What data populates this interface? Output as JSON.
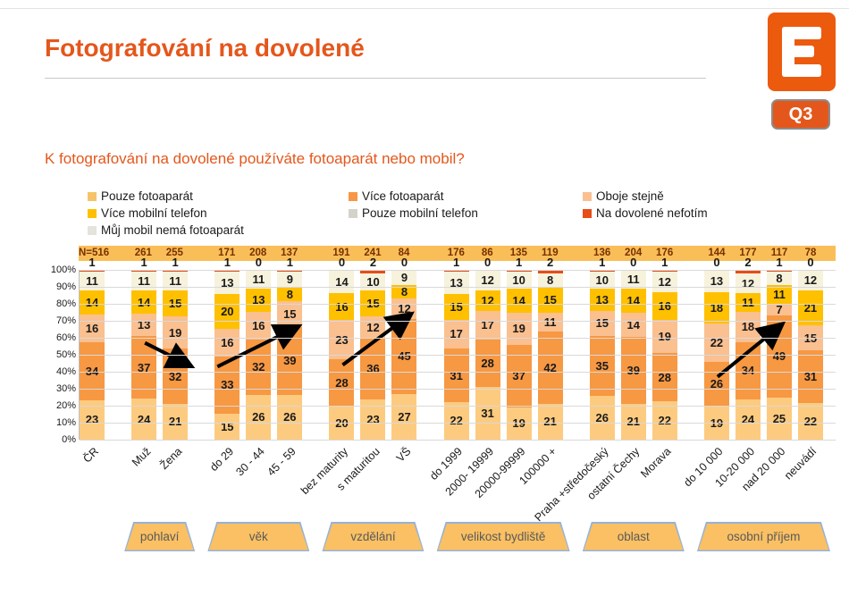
{
  "header": {
    "title": "Fotografování na dovolené",
    "badge": "Q3",
    "logo_name": "cez-logo",
    "title_color": "#e4571c",
    "logo_color": "#ec5a0e"
  },
  "question": "K fotografování na dovolené používáte fotoaparát nebo mobil?",
  "legend": {
    "columns": [
      [
        {
          "label": "Pouze fotoaparát",
          "color": "#f6c468"
        },
        {
          "label": "Více mobilní telefon",
          "color": "#ffc000"
        },
        {
          "label": "Můj mobil nemá fotoaparát",
          "color": "#e5e3de"
        }
      ],
      [
        {
          "label": "Více fotoaparát",
          "color": "#f79646"
        },
        {
          "label": "Pouze mobilní telefon",
          "color": "#d5d2cb"
        }
      ],
      [
        {
          "label": "Oboje stejně",
          "color": "#fac090"
        },
        {
          "label": "Na dovolené nefotím",
          "color": "#e84c17"
        }
      ]
    ]
  },
  "chart_data": {
    "type": "bar",
    "subtype": "stacked-100pct-column",
    "ylim": [
      0,
      100
    ],
    "yticks": [
      "100%",
      "90%",
      "80%",
      "70%",
      "60%",
      "50%",
      "40%",
      "30%",
      "20%",
      "10%",
      "0%"
    ],
    "grid": true,
    "n_band_color": "#f9be58",
    "series_order_bottom_to_top": [
      "Pouze fotoaparát",
      "Více fotoaparát",
      "Oboje stejně",
      "Více mobilní telefon",
      "Pouze mobilní telefon",
      "Na dovolené nefotím"
    ],
    "series_colors": [
      "#fdcb7f",
      "#f79843",
      "#fac090",
      "#ffc000",
      "#f7f2dc",
      "#e84c17"
    ],
    "groups": [
      {
        "label": null,
        "bars": [
          {
            "category": "ČR",
            "n": "N=516",
            "values": [
              23,
              34,
              16,
              14,
              11,
              1
            ]
          }
        ]
      },
      {
        "label": "pohlaví",
        "bars": [
          {
            "category": "Muž",
            "n": "261",
            "values": [
              24,
              37,
              13,
              14,
              11,
              1
            ]
          },
          {
            "category": "Žena",
            "n": "255",
            "values": [
              21,
              32,
              19,
              15,
              11,
              1
            ]
          }
        ]
      },
      {
        "label": "věk",
        "bars": [
          {
            "category": "do 29",
            "n": "171",
            "values": [
              15,
              33,
              16,
              20,
              13,
              1
            ]
          },
          {
            "category": "30 - 44",
            "n": "208",
            "values": [
              26,
              32,
              16,
              13,
              11,
              0
            ]
          },
          {
            "category": "45 - 59",
            "n": "137",
            "values": [
              26,
              39,
              15,
              8,
              9,
              1
            ]
          }
        ]
      },
      {
        "label": "vzdělání",
        "bars": [
          {
            "category": "bez maturity",
            "n": "191",
            "values": [
              20,
              28,
              23,
              16,
              14,
              0
            ]
          },
          {
            "category": "s maturitou",
            "n": "241",
            "values": [
              23,
              36,
              12,
              15,
              10,
              2
            ]
          },
          {
            "category": "VŠ",
            "n": "84",
            "values": [
              27,
              45,
              12,
              8,
              9,
              0
            ]
          }
        ]
      },
      {
        "label": "velikost bydliště",
        "bars": [
          {
            "category": "do 1999",
            "n": "176",
            "values": [
              22,
              31,
              17,
              15,
              13,
              1
            ]
          },
          {
            "category": "2000- 19999",
            "n": "86",
            "values": [
              31,
              28,
              17,
              12,
              12,
              0
            ]
          },
          {
            "category": "20000-99999",
            "n": "135",
            "values": [
              19,
              37,
              19,
              14,
              10,
              1
            ]
          },
          {
            "category": "100000 +",
            "n": "119",
            "values": [
              21,
              42,
              11,
              15,
              8,
              2
            ]
          }
        ]
      },
      {
        "label": "oblast",
        "bars": [
          {
            "category": "Praha +středočeský",
            "n": "136",
            "values": [
              26,
              35,
              15,
              13,
              10,
              1
            ]
          },
          {
            "category": "ostatní Čechy",
            "n": "204",
            "values": [
              21,
              39,
              14,
              14,
              11,
              0
            ]
          },
          {
            "category": "Morava",
            "n": "176",
            "values": [
              22,
              28,
              19,
              16,
              12,
              1
            ]
          }
        ]
      },
      {
        "label": "osobní příjem",
        "bars": [
          {
            "category": "do 10 000",
            "n": "144",
            "values": [
              19,
              26,
              22,
              18,
              13,
              0
            ]
          },
          {
            "category": "10-20 000",
            "n": "177",
            "values": [
              24,
              34,
              18,
              11,
              12,
              2
            ]
          },
          {
            "category": "nad 20 000",
            "n": "117",
            "values": [
              25,
              49,
              7,
              11,
              8,
              1
            ]
          },
          {
            "category": "neuvádí",
            "n": "78",
            "values": [
              22,
              31,
              15,
              21,
              12,
              0
            ]
          }
        ]
      }
    ],
    "annotations": {
      "arrows": [
        {
          "from_bar": 1,
          "from_pct": 57,
          "from_dx": 0,
          "to_bar": 2,
          "to_pct": 44,
          "to_dx": 14
        },
        {
          "from_bar": 3,
          "from_pct": 43,
          "from_dx": -12,
          "to_bar": 5,
          "to_pct": 66,
          "to_dx": 6
        },
        {
          "from_bar": 6,
          "from_pct": 44,
          "from_dx": 0,
          "to_bar": 8,
          "to_pct": 73,
          "to_dx": 4
        },
        {
          "from_bar": 16,
          "from_pct": 37,
          "from_dx": 0,
          "to_bar": 18,
          "to_pct": 67,
          "to_dx": 0
        }
      ]
    }
  }
}
